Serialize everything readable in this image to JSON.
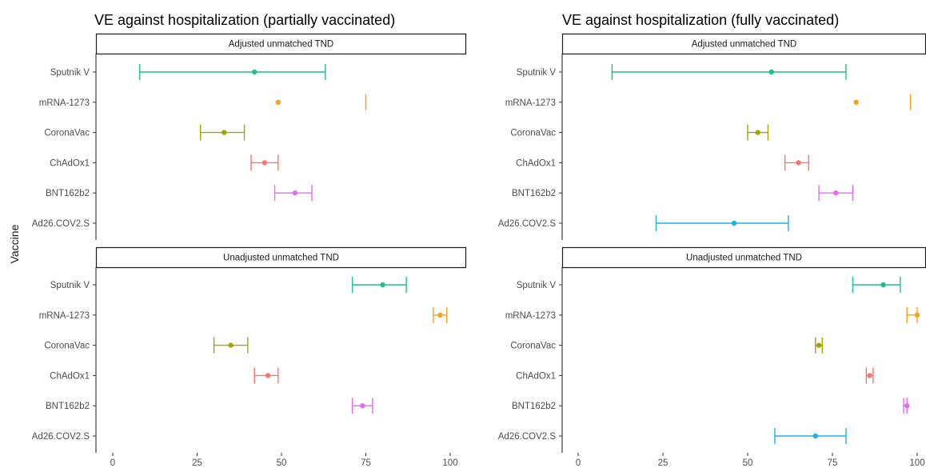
{
  "chart_data": {
    "type": "forest",
    "ylabel": "Vaccine",
    "xlim": [
      0,
      100
    ],
    "x_ticks": [
      0,
      25,
      50,
      75,
      100
    ],
    "vaccines": [
      "Sputnik V",
      "mRNA-1273",
      "CoronaVac",
      "ChAdOx1",
      "BNT162b2",
      "Ad26.COV2.S"
    ],
    "colors": {
      "Sputnik V": "#1fbf85",
      "mRNA-1273": "#f5a31a",
      "CoronaVac": "#a3a500",
      "ChAdOx1": "#f8766d",
      "BNT162b2": "#e76bf3",
      "Ad26.COV2.S": "#1fb1e6"
    },
    "panels": [
      {
        "title": "VE against hospitalization (partially vaccinated)",
        "facets": [
          {
            "strip": "Adjusted unmatched TND",
            "points": [
              {
                "vaccine": "Sputnik V",
                "est": 42,
                "lo": 8,
                "hi": 63
              },
              {
                "vaccine": "mRNA-1273",
                "est": 49,
                "lo": null,
                "hi": 75
              },
              {
                "vaccine": "CoronaVac",
                "est": 33,
                "lo": 26,
                "hi": 39
              },
              {
                "vaccine": "ChAdOx1",
                "est": 45,
                "lo": 41,
                "hi": 49
              },
              {
                "vaccine": "BNT162b2",
                "est": 54,
                "lo": 48,
                "hi": 59
              },
              {
                "vaccine": "Ad26.COV2.S",
                "est": null,
                "lo": null,
                "hi": null
              }
            ]
          },
          {
            "strip": "Unadjusted unmatched TND",
            "points": [
              {
                "vaccine": "Sputnik V",
                "est": 80,
                "lo": 71,
                "hi": 87
              },
              {
                "vaccine": "mRNA-1273",
                "est": 97,
                "lo": 95,
                "hi": 99
              },
              {
                "vaccine": "CoronaVac",
                "est": 35,
                "lo": 30,
                "hi": 40
              },
              {
                "vaccine": "ChAdOx1",
                "est": 46,
                "lo": 42,
                "hi": 49
              },
              {
                "vaccine": "BNT162b2",
                "est": 74,
                "lo": 71,
                "hi": 77
              },
              {
                "vaccine": "Ad26.COV2.S",
                "est": null,
                "lo": null,
                "hi": null
              }
            ]
          }
        ]
      },
      {
        "title": "VE against hospitalization (fully vaccinated)",
        "facets": [
          {
            "strip": "Adjusted unmatched TND",
            "points": [
              {
                "vaccine": "Sputnik V",
                "est": 57,
                "lo": 10,
                "hi": 79
              },
              {
                "vaccine": "mRNA-1273",
                "est": 82,
                "lo": null,
                "hi": 98
              },
              {
                "vaccine": "CoronaVac",
                "est": 53,
                "lo": 50,
                "hi": 56
              },
              {
                "vaccine": "ChAdOx1",
                "est": 65,
                "lo": 61,
                "hi": 68
              },
              {
                "vaccine": "BNT162b2",
                "est": 76,
                "lo": 71,
                "hi": 81
              },
              {
                "vaccine": "Ad26.COV2.S",
                "est": 46,
                "lo": 23,
                "hi": 62
              }
            ]
          },
          {
            "strip": "Unadjusted unmatched TND",
            "points": [
              {
                "vaccine": "Sputnik V",
                "est": 90,
                "lo": 81,
                "hi": 95
              },
              {
                "vaccine": "mRNA-1273",
                "est": 100,
                "lo": 97,
                "hi": 100
              },
              {
                "vaccine": "CoronaVac",
                "est": 71,
                "lo": 70,
                "hi": 72
              },
              {
                "vaccine": "ChAdOx1",
                "est": 86,
                "lo": 85,
                "hi": 87
              },
              {
                "vaccine": "BNT162b2",
                "est": 97,
                "lo": 96,
                "hi": 97
              },
              {
                "vaccine": "Ad26.COV2.S",
                "est": 70,
                "lo": 58,
                "hi": 79
              }
            ]
          }
        ]
      }
    ]
  }
}
